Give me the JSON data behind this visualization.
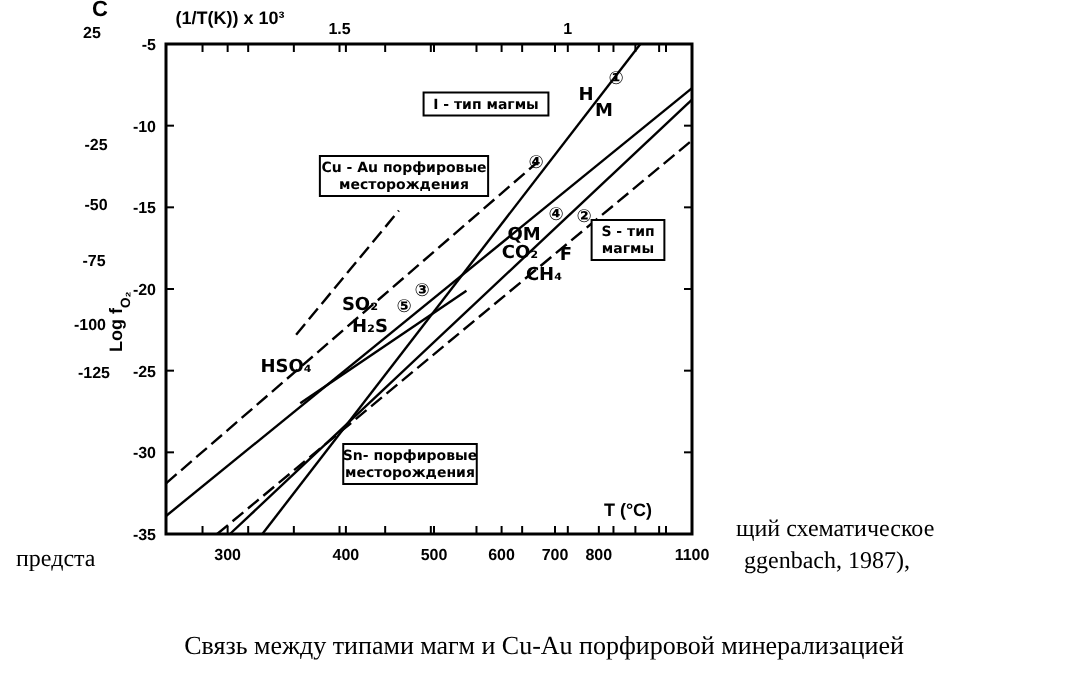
{
  "chart_data": {
    "type": "line",
    "xlabel": "(1/T(K)) x 10³",
    "ylabel": "Log f$_{O₂}$",
    "xlim": [
      1.88,
      0.728
    ],
    "ylim": [
      -35,
      -5
    ],
    "xticks": [
      {
        "value": 1.8,
        "label": null
      },
      {
        "value": 1.745,
        "label": null
      },
      {
        "value": 1.7,
        "label": null
      },
      {
        "value": 1.6,
        "label": null
      },
      1.5,
      {
        "value": 1.486,
        "label": null
      },
      {
        "value": 1.4,
        "label": null
      },
      {
        "value": 1.3,
        "label": null
      },
      {
        "value": 1.293,
        "label": null
      },
      {
        "value": 1.2,
        "label": null
      },
      {
        "value": 1.145,
        "label": null
      },
      {
        "value": 1.1,
        "label": null
      },
      {
        "value": 1.028,
        "label": null
      },
      1.0,
      {
        "value": 0.932,
        "label": null
      },
      {
        "value": 0.9,
        "label": null
      },
      {
        "value": 0.852,
        "label": null
      },
      {
        "value": 0.8,
        "label": null
      },
      {
        "value": 0.785,
        "label": null
      }
    ],
    "yticks": [
      -5,
      -10,
      -15,
      -20,
      -25,
      -30,
      -35
    ],
    "grid": false,
    "series": [
      {
        "color": "#000000",
        "line_style": "solid",
        "x": [
          1.669,
          0.841
        ],
        "values": [
          -35,
          -5
        ]
      },
      {
        "color": "#000000",
        "line_style": "dashed",
        "x": [
          1.88,
          1.069
        ],
        "values": [
          -31.9,
          -12.3
        ]
      },
      {
        "color": "#000000",
        "line_style": "solid",
        "x": [
          1.88,
          0.728
        ],
        "values": [
          -33.9,
          -7.7
        ]
      },
      {
        "color": "#000000",
        "line_style": "solid",
        "x": [
          1.74,
          0.728
        ],
        "values": [
          -35,
          -8.4
        ]
      },
      {
        "color": "#000000",
        "line_style": "dashed",
        "x": [
          1.768,
          0.728
        ],
        "values": [
          -35,
          -10.9
        ]
      },
      {
        "color": "#000000",
        "line_style": "dashed",
        "x": [
          1.595,
          1.37
        ],
        "values": [
          -22.8,
          -15.2
        ]
      },
      {
        "color": "#000000",
        "line_style": "solid",
        "x": [
          1.586,
          1.222
        ],
        "values": [
          -27.0,
          -20.1
        ]
      }
    ],
    "annotations": [
      "C",
      "25",
      "-25",
      "-50",
      "-75",
      "-100",
      "-125",
      "предста",
      "щий схематическое",
      "ggenbach, 1987),",
      "Связь между типами магм и Cu-Au порфировой минерализацией",
      "H",
      "⑤",
      "H₂S",
      "I - тип магмы",
      "Cu - Au порфировые\nместорождения",
      "S - тип\nмагмы",
      "Sn- порфировые\nместорождения",
      "M",
      "①",
      "②",
      "④",
      "④",
      "QM",
      "F",
      "CO₂",
      "CH₄",
      "③",
      "SO₂",
      "HSO₄",
      "300",
      "400",
      "500",
      "600",
      "700",
      "800",
      "1100",
      "T (°C)"
    ]
  }
}
